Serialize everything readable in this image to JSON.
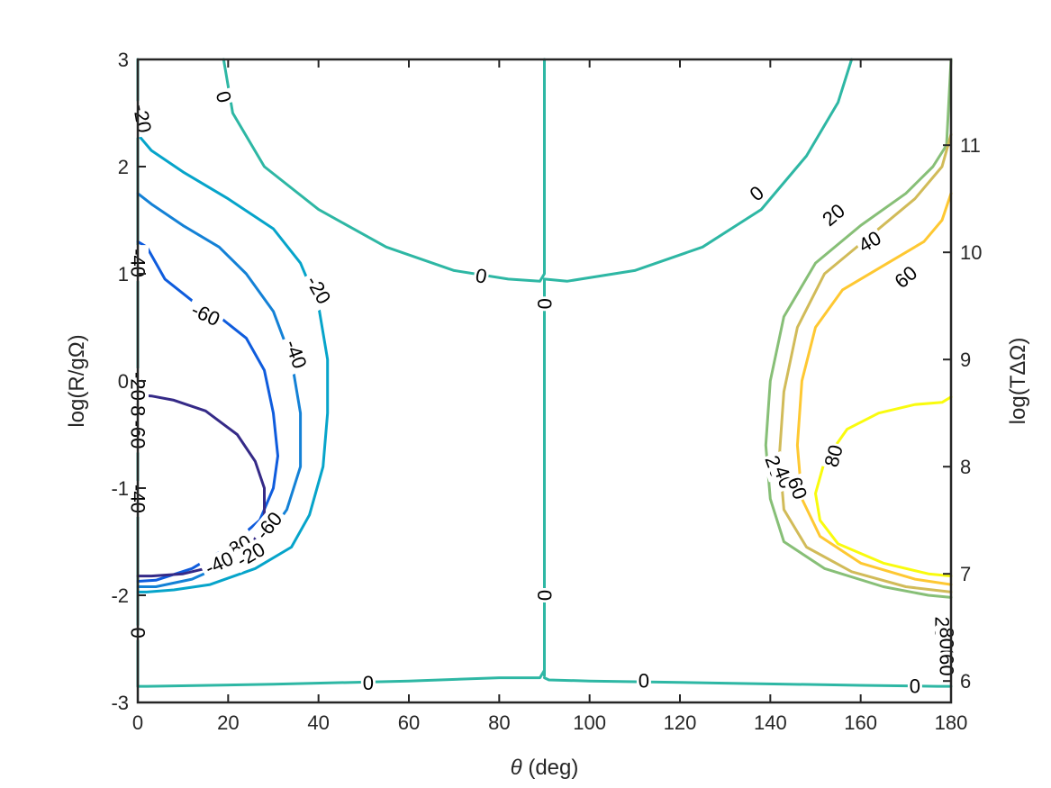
{
  "chart_data": {
    "type": "contour",
    "xlabel_symbol": "θ",
    "xlabel_rest": " (deg)",
    "ylabel": "log(R/gΩ)",
    "y2label": "log(TΔΩ)",
    "xlim": [
      0,
      180
    ],
    "ylim": [
      -3,
      3
    ],
    "y2lim": [
      5.8,
      11.8
    ],
    "xticks": [
      "0",
      "20",
      "40",
      "60",
      "80",
      "100",
      "120",
      "140",
      "160",
      "180"
    ],
    "yticks": [
      "-3",
      "-2",
      "-1",
      "0",
      "1",
      "2",
      "3"
    ],
    "y2ticks": [
      "6",
      "7",
      "8",
      "9",
      "10",
      "11"
    ],
    "grid": false,
    "colors": {
      "-80": "#352a87",
      "-60": "#0f5cdd",
      "-40": "#1481d6",
      "-20": "#06a4ca",
      "0": "#2eb7a4",
      "20": "#87bf77",
      "40": "#d1bb59",
      "60": "#fec832",
      "80": "#f9fb0e"
    },
    "levels": [
      {
        "level": "0",
        "paths": [
          [
            [
              19,
              3.0
            ],
            [
              21,
              2.5
            ],
            [
              28,
              2.0
            ],
            [
              40,
              1.6
            ],
            [
              55,
              1.25
            ],
            [
              70,
              1.03
            ],
            [
              82,
              0.95
            ],
            [
              89,
              0.93
            ],
            [
              90,
              1.0
            ],
            [
              90,
              3.0
            ]
          ],
          [
            [
              90,
              0.95
            ],
            [
              95,
              0.93
            ],
            [
              110,
              1.03
            ],
            [
              125,
              1.25
            ],
            [
              138,
              1.6
            ],
            [
              148,
              2.1
            ],
            [
              155,
              2.6
            ],
            [
              158,
              3.0
            ]
          ],
          [
            [
              90,
              0.95
            ],
            [
              90,
              -2.75
            ]
          ],
          [
            [
              0,
              -2.85
            ],
            [
              2,
              -2.85
            ],
            [
              30,
              -2.83
            ],
            [
              60,
              -2.8
            ],
            [
              80,
              -2.77
            ],
            [
              89,
              -2.77
            ],
            [
              90,
              -2.7
            ]
          ],
          [
            [
              90,
              -2.77
            ],
            [
              91,
              -2.79
            ],
            [
              100,
              -2.8
            ],
            [
              130,
              -2.82
            ],
            [
              160,
              -2.84
            ],
            [
              177,
              -2.85
            ],
            [
              180,
              -2.85
            ]
          ],
          [
            [
              0,
              3.0
            ],
            [
              0,
              -2.85
            ]
          ]
        ]
      },
      {
        "level": "-20",
        "paths": [
          [
            [
              0,
              2.3
            ],
            [
              3,
              2.15
            ],
            [
              10,
              1.95
            ],
            [
              20,
              1.7
            ],
            [
              30,
              1.42
            ],
            [
              36,
              1.1
            ],
            [
              40,
              0.7
            ],
            [
              42,
              0.2
            ],
            [
              42,
              -0.3
            ],
            [
              41,
              -0.8
            ],
            [
              38,
              -1.25
            ],
            [
              34,
              -1.55
            ],
            [
              26,
              -1.75
            ],
            [
              16,
              -1.9
            ],
            [
              8,
              -1.95
            ],
            [
              2,
              -1.97
            ],
            [
              0,
              -1.97
            ]
          ]
        ]
      },
      {
        "level": "-40",
        "paths": [
          [
            [
              0,
              1.75
            ],
            [
              3,
              1.65
            ],
            [
              10,
              1.45
            ],
            [
              18,
              1.25
            ],
            [
              24,
              1.0
            ],
            [
              30,
              0.65
            ],
            [
              34,
              0.2
            ],
            [
              36,
              -0.3
            ],
            [
              36,
              -0.8
            ],
            [
              33,
              -1.2
            ],
            [
              28,
              -1.5
            ],
            [
              20,
              -1.7
            ],
            [
              12,
              -1.85
            ],
            [
              4,
              -1.92
            ],
            [
              0,
              -1.92
            ]
          ]
        ]
      },
      {
        "level": "-60",
        "paths": [
          [
            [
              0,
              1.3
            ],
            [
              2,
              1.25
            ],
            [
              4,
              1.1
            ],
            [
              6,
              0.95
            ],
            [
              12,
              0.75
            ],
            [
              18,
              0.6
            ],
            [
              24,
              0.4
            ],
            [
              28,
              0.1
            ],
            [
              30,
              -0.3
            ],
            [
              31,
              -0.7
            ],
            [
              30,
              -1.0
            ],
            [
              27,
              -1.3
            ],
            [
              20,
              -1.55
            ],
            [
              12,
              -1.75
            ],
            [
              4,
              -1.86
            ],
            [
              0,
              -1.87
            ]
          ]
        ]
      },
      {
        "level": "-80",
        "paths": [
          [
            [
              0,
              -0.13
            ],
            [
              3,
              -0.14
            ],
            [
              8,
              -0.18
            ],
            [
              15,
              -0.28
            ],
            [
              22,
              -0.5
            ],
            [
              26,
              -0.75
            ],
            [
              28,
              -1.0
            ],
            [
              28,
              -1.3
            ],
            [
              25,
              -1.55
            ],
            [
              18,
              -1.72
            ],
            [
              10,
              -1.8
            ],
            [
              3,
              -1.82
            ],
            [
              0,
              -1.82
            ]
          ]
        ]
      },
      {
        "level": "20",
        "paths": [
          [
            [
              180,
              3.0
            ],
            [
              179,
              2.2
            ],
            [
              176,
              2.0
            ],
            [
              170,
              1.75
            ],
            [
              160,
              1.45
            ],
            [
              150,
              1.1
            ],
            [
              143,
              0.6
            ],
            [
              140,
              0.0
            ],
            [
              139,
              -0.6
            ],
            [
              140,
              -1.1
            ],
            [
              143,
              -1.5
            ],
            [
              152,
              -1.75
            ],
            [
              165,
              -1.92
            ],
            [
              175,
              -2.0
            ],
            [
              180,
              -2.02
            ]
          ]
        ]
      },
      {
        "level": "40",
        "paths": [
          [
            [
              180,
              2.3
            ],
            [
              178,
              2.0
            ],
            [
              172,
              1.7
            ],
            [
              162,
              1.35
            ],
            [
              152,
              1.0
            ],
            [
              146,
              0.5
            ],
            [
              143,
              -0.1
            ],
            [
              142,
              -0.7
            ],
            [
              143,
              -1.2
            ],
            [
              148,
              -1.55
            ],
            [
              158,
              -1.78
            ],
            [
              170,
              -1.92
            ],
            [
              180,
              -1.97
            ]
          ]
        ]
      },
      {
        "level": "60",
        "paths": [
          [
            [
              180,
              1.75
            ],
            [
              178,
              1.5
            ],
            [
              174,
              1.3
            ],
            [
              166,
              1.1
            ],
            [
              156,
              0.85
            ],
            [
              150,
              0.5
            ],
            [
              147,
              0.0
            ],
            [
              146,
              -0.6
            ],
            [
              147,
              -1.1
            ],
            [
              151,
              -1.45
            ],
            [
              160,
              -1.7
            ],
            [
              172,
              -1.85
            ],
            [
              180,
              -1.9
            ]
          ]
        ]
      },
      {
        "level": "80",
        "paths": [
          [
            [
              180,
              -0.15
            ],
            [
              178,
              -0.2
            ],
            [
              172,
              -0.22
            ],
            [
              164,
              -0.3
            ],
            [
              157,
              -0.45
            ],
            [
              152,
              -0.75
            ],
            [
              150,
              -1.05
            ],
            [
              151,
              -1.3
            ],
            [
              155,
              -1.52
            ],
            [
              165,
              -1.7
            ],
            [
              175,
              -1.8
            ],
            [
              180,
              -1.82
            ]
          ]
        ]
      }
    ],
    "labels": [
      {
        "text": "0",
        "x": 19,
        "y": 2.65,
        "rotate": 75
      },
      {
        "text": "0",
        "x": 76,
        "y": 0.98,
        "rotate": 10
      },
      {
        "text": "0",
        "x": 90,
        "y": 0.72,
        "rotate": 90
      },
      {
        "text": "0",
        "x": 137,
        "y": 1.75,
        "rotate": -40
      },
      {
        "text": "0",
        "x": 90,
        "y": -2.0,
        "rotate": 90
      },
      {
        "text": "0",
        "x": 51,
        "y": -2.82,
        "rotate": 0
      },
      {
        "text": "0",
        "x": 112,
        "y": -2.8,
        "rotate": 0
      },
      {
        "text": "0",
        "x": 172,
        "y": -2.85,
        "rotate": 0
      },
      {
        "text": "0",
        "x": 0,
        "y": -2.35,
        "rotate": 90
      },
      {
        "text": "-20",
        "x": 1,
        "y": 2.45,
        "rotate": 80
      },
      {
        "text": "-20",
        "x": 40,
        "y": 0.85,
        "rotate": 60
      },
      {
        "text": "-40",
        "x": 0,
        "y": 1.1,
        "rotate": 90
      },
      {
        "text": "-40",
        "x": 35,
        "y": 0.25,
        "rotate": 70
      },
      {
        "text": "-40",
        "x": 0,
        "y": -1.1,
        "rotate": 90
      },
      {
        "text": "-60",
        "x": 15,
        "y": 0.62,
        "rotate": 25
      },
      {
        "text": "-60",
        "x": 29,
        "y": -1.35,
        "rotate": -50
      },
      {
        "text": "-80",
        "x": 22,
        "y": -1.55,
        "rotate": -30
      },
      {
        "text": "-40",
        "x": 18,
        "y": -1.7,
        "rotate": -25
      },
      {
        "text": "-20",
        "x": 25,
        "y": -1.62,
        "rotate": -30
      },
      {
        "text": "-80",
        "x": 0,
        "y": -0.3,
        "rotate": 90
      },
      {
        "text": "-60",
        "x": 0,
        "y": -0.5,
        "rotate": 90
      },
      {
        "text": "-20",
        "x": 0,
        "y": -0.05,
        "rotate": 90
      },
      {
        "text": "20",
        "x": 154,
        "y": 1.55,
        "rotate": -40
      },
      {
        "text": "40",
        "x": 162,
        "y": 1.3,
        "rotate": -30
      },
      {
        "text": "60",
        "x": 170,
        "y": 0.97,
        "rotate": -40
      },
      {
        "text": "80",
        "x": 154,
        "y": -0.7,
        "rotate": -75
      },
      {
        "text": "20",
        "x": 141,
        "y": -0.8,
        "rotate": 70
      },
      {
        "text": "40",
        "x": 143,
        "y": -0.9,
        "rotate": 70
      },
      {
        "text": "60",
        "x": 146,
        "y": -1.0,
        "rotate": 70
      },
      {
        "text": "20",
        "x": 178,
        "y": -2.3,
        "rotate": 90
      },
      {
        "text": "40",
        "x": 179,
        "y": -2.5,
        "rotate": 90
      },
      {
        "text": "60",
        "x": 179,
        "y": -2.65,
        "rotate": 90
      },
      {
        "text": "80",
        "x": 179,
        "y": -2.4,
        "rotate": 90
      }
    ]
  }
}
